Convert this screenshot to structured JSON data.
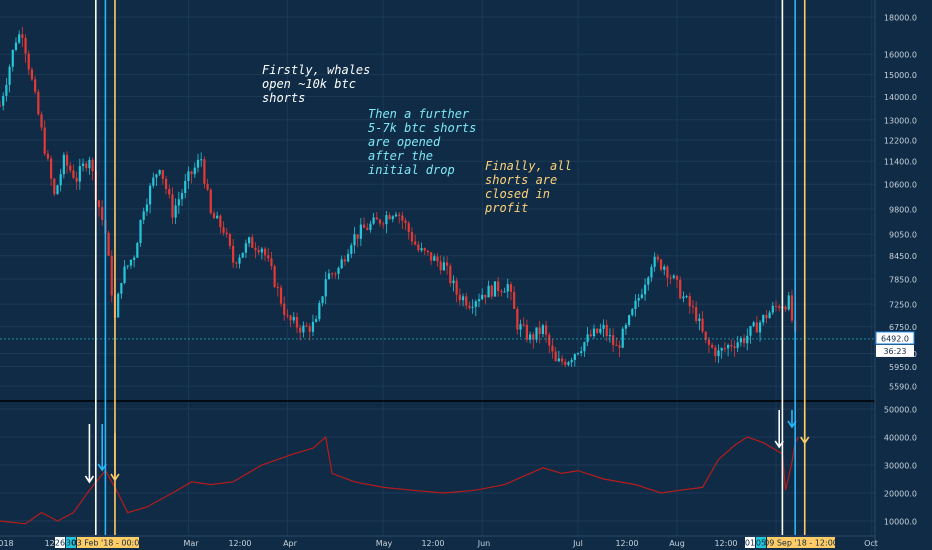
{
  "colors": {
    "background": "#0f2b45",
    "grid": "#1c3a56",
    "up": "#26c6da",
    "down": "#e53935",
    "volume": "#b71c1c",
    "white_line": "#ffffff",
    "cyan_line": "#29b6f6",
    "yellow_line": "#ffcc66",
    "axis_text": "#c8d2dc",
    "annot_white": "#ffffff",
    "annot_cyan": "#7ee8f8",
    "annot_yellow": "#ffd27a"
  },
  "annotations": {
    "whales": "Firstly, whales\nopen ~10k btc\nshorts",
    "further": "Then a further\n5-7k btc shorts\nare opened\nafter the\ninitial drop",
    "finally": "Finally, all\nshorts are\nclosed in\nprofit"
  },
  "price_label": "6492.0",
  "countdown_label": "36:23",
  "x_labels": {
    "year_fragment": "018",
    "mar": "Mar",
    "mar_noon": "12:00",
    "apr": "Apr",
    "may": "May",
    "may_noon": "12:00",
    "jun": "Jun",
    "jul": "Jul",
    "jul_noon": "12:00",
    "aug": "Aug",
    "aug_noon": "12:00",
    "oct": "Oct",
    "early_time": "12:"
  },
  "markers": {
    "left_boxes": [
      "26",
      "30"
    ],
    "left_date": "03 Feb '18 - 00:00",
    "right_boxes": [
      "01",
      "05"
    ],
    "right_date": "09 Sep '18 - 12:00"
  },
  "chart_data": [
    {
      "type": "candlestick",
      "title": "",
      "y_ticks": [
        18000.0,
        16000.0,
        15000.0,
        14000.0,
        13000.0,
        12200.0,
        11400.0,
        10600.0,
        9800.0,
        9050.0,
        8450.0,
        7850.0,
        7250.0,
        6750.0,
        6200.0,
        5950.0,
        5590.0
      ],
      "y_scale": "log",
      "ylim": [
        5350,
        19000
      ],
      "x_range": [
        "2018-01-01",
        "2018-10-02"
      ],
      "last_price": 6492.0,
      "series": [
        {
          "name": "",
          "points": [
            {
              "x": "2018-01-01",
              "y": 13600
            },
            {
              "x": "2018-01-06",
              "y": 16800
            },
            {
              "x": "2018-01-08",
              "y": 17200
            },
            {
              "x": "2018-01-12",
              "y": 13900
            },
            {
              "x": "2018-01-16",
              "y": 11300
            },
            {
              "x": "2018-01-18",
              "y": 10200
            },
            {
              "x": "2018-01-21",
              "y": 11400
            },
            {
              "x": "2018-01-25",
              "y": 10800
            },
            {
              "x": "2018-01-29",
              "y": 11600
            },
            {
              "x": "2018-01-31",
              "y": 10300
            },
            {
              "x": "2018-02-03",
              "y": 9100
            },
            {
              "x": "2018-02-06",
              "y": 6900
            },
            {
              "x": "2018-02-08",
              "y": 7900
            },
            {
              "x": "2018-02-12",
              "y": 8500
            },
            {
              "x": "2018-02-15",
              "y": 9900
            },
            {
              "x": "2018-02-20",
              "y": 11300
            },
            {
              "x": "2018-02-24",
              "y": 9700
            },
            {
              "x": "2018-03-01",
              "y": 10800
            },
            {
              "x": "2018-03-05",
              "y": 11500
            },
            {
              "x": "2018-03-08",
              "y": 9600
            },
            {
              "x": "2018-03-12",
              "y": 9200
            },
            {
              "x": "2018-03-15",
              "y": 8300
            },
            {
              "x": "2018-03-20",
              "y": 8800
            },
            {
              "x": "2018-03-24",
              "y": 8700
            },
            {
              "x": "2018-03-28",
              "y": 7800
            },
            {
              "x": "2018-04-01",
              "y": 6900
            },
            {
              "x": "2018-04-06",
              "y": 6700
            },
            {
              "x": "2018-04-10",
              "y": 6800
            },
            {
              "x": "2018-04-13",
              "y": 7900
            },
            {
              "x": "2018-04-17",
              "y": 8100
            },
            {
              "x": "2018-04-21",
              "y": 8900
            },
            {
              "x": "2018-04-25",
              "y": 9200
            },
            {
              "x": "2018-04-29",
              "y": 9400
            },
            {
              "x": "2018-05-05",
              "y": 9800
            },
            {
              "x": "2018-05-08",
              "y": 9300
            },
            {
              "x": "2018-05-12",
              "y": 8600
            },
            {
              "x": "2018-05-16",
              "y": 8400
            },
            {
              "x": "2018-05-20",
              "y": 8200
            },
            {
              "x": "2018-05-24",
              "y": 7500
            },
            {
              "x": "2018-05-28",
              "y": 7300
            },
            {
              "x": "2018-06-01",
              "y": 7500
            },
            {
              "x": "2018-06-06",
              "y": 7650
            },
            {
              "x": "2018-06-09",
              "y": 7700
            },
            {
              "x": "2018-06-12",
              "y": 6800
            },
            {
              "x": "2018-06-16",
              "y": 6500
            },
            {
              "x": "2018-06-20",
              "y": 6700
            },
            {
              "x": "2018-06-24",
              "y": 6000
            },
            {
              "x": "2018-06-28",
              "y": 6100
            },
            {
              "x": "2018-07-01",
              "y": 6300
            },
            {
              "x": "2018-07-05",
              "y": 6550
            },
            {
              "x": "2018-07-09",
              "y": 6700
            },
            {
              "x": "2018-07-13",
              "y": 6300
            },
            {
              "x": "2018-07-16",
              "y": 6700
            },
            {
              "x": "2018-07-20",
              "y": 7400
            },
            {
              "x": "2018-07-24",
              "y": 8300
            },
            {
              "x": "2018-07-28",
              "y": 8200
            },
            {
              "x": "2018-07-31",
              "y": 7800
            },
            {
              "x": "2018-08-03",
              "y": 7400
            },
            {
              "x": "2018-08-07",
              "y": 7000
            },
            {
              "x": "2018-08-10",
              "y": 6400
            },
            {
              "x": "2018-08-14",
              "y": 6200
            },
            {
              "x": "2018-08-18",
              "y": 6400
            },
            {
              "x": "2018-08-22",
              "y": 6500
            },
            {
              "x": "2018-08-25",
              "y": 6700
            },
            {
              "x": "2018-08-29",
              "y": 7000
            },
            {
              "x": "2018-09-02",
              "y": 7250
            },
            {
              "x": "2018-09-05",
              "y": 7300
            },
            {
              "x": "2018-09-07",
              "y": 6500
            }
          ]
        }
      ]
    },
    {
      "type": "line",
      "title": "",
      "y_ticks": [
        50000.0,
        40000.0,
        30000.0,
        20000.0,
        10000.0
      ],
      "ylim": [
        5000,
        52500
      ],
      "x_range": [
        "2018-01-01",
        "2018-10-02"
      ],
      "series": [
        {
          "name": "",
          "points": [
            {
              "x": "2018-01-01",
              "y": 10000
            },
            {
              "x": "2018-01-09",
              "y": 9000
            },
            {
              "x": "2018-01-14",
              "y": 13000
            },
            {
              "x": "2018-01-19",
              "y": 10000
            },
            {
              "x": "2018-01-24",
              "y": 13000
            },
            {
              "x": "2018-01-29",
              "y": 21000
            },
            {
              "x": "2018-02-03",
              "y": 28000
            },
            {
              "x": "2018-02-06",
              "y": 22000
            },
            {
              "x": "2018-02-10",
              "y": 13000
            },
            {
              "x": "2018-02-16",
              "y": 15000
            },
            {
              "x": "2018-02-24",
              "y": 20000
            },
            {
              "x": "2018-03-02",
              "y": 24000
            },
            {
              "x": "2018-03-08",
              "y": 23000
            },
            {
              "x": "2018-03-15",
              "y": 24000
            },
            {
              "x": "2018-03-24",
              "y": 30000
            },
            {
              "x": "2018-04-03",
              "y": 34000
            },
            {
              "x": "2018-04-09",
              "y": 36000
            },
            {
              "x": "2018-04-13",
              "y": 40000
            },
            {
              "x": "2018-04-15",
              "y": 27000
            },
            {
              "x": "2018-04-22",
              "y": 24000
            },
            {
              "x": "2018-05-01",
              "y": 22000
            },
            {
              "x": "2018-05-10",
              "y": 21000
            },
            {
              "x": "2018-05-20",
              "y": 20000
            },
            {
              "x": "2018-05-30",
              "y": 21000
            },
            {
              "x": "2018-06-08",
              "y": 23000
            },
            {
              "x": "2018-06-14",
              "y": 26000
            },
            {
              "x": "2018-06-20",
              "y": 29000
            },
            {
              "x": "2018-06-26",
              "y": 27000
            },
            {
              "x": "2018-07-01",
              "y": 28000
            },
            {
              "x": "2018-07-09",
              "y": 25000
            },
            {
              "x": "2018-07-19",
              "y": 23000
            },
            {
              "x": "2018-07-27",
              "y": 20000
            },
            {
              "x": "2018-08-02",
              "y": 21000
            },
            {
              "x": "2018-08-09",
              "y": 22000
            },
            {
              "x": "2018-08-14",
              "y": 32000
            },
            {
              "x": "2018-08-19",
              "y": 37000
            },
            {
              "x": "2018-08-23",
              "y": 40000
            },
            {
              "x": "2018-08-28",
              "y": 38000
            },
            {
              "x": "2018-09-03",
              "y": 34000
            },
            {
              "x": "2018-09-04",
              "y": 21000
            },
            {
              "x": "2018-09-06",
              "y": 31000
            },
            {
              "x": "2018-09-07",
              "y": 38000
            },
            {
              "x": "2018-09-08",
              "y": 40000
            }
          ]
        }
      ]
    }
  ],
  "event_lines": [
    {
      "color_key": "white_line",
      "date": "2018-01-31"
    },
    {
      "color_key": "cyan_line",
      "date": "2018-02-03"
    },
    {
      "color_key": "yellow_line",
      "date": "2018-02-06"
    },
    {
      "color_key": "white_line",
      "date": "2018-09-03"
    },
    {
      "color_key": "cyan_line",
      "date": "2018-09-07"
    },
    {
      "color_key": "yellow_line",
      "date": "2018-09-10"
    }
  ]
}
